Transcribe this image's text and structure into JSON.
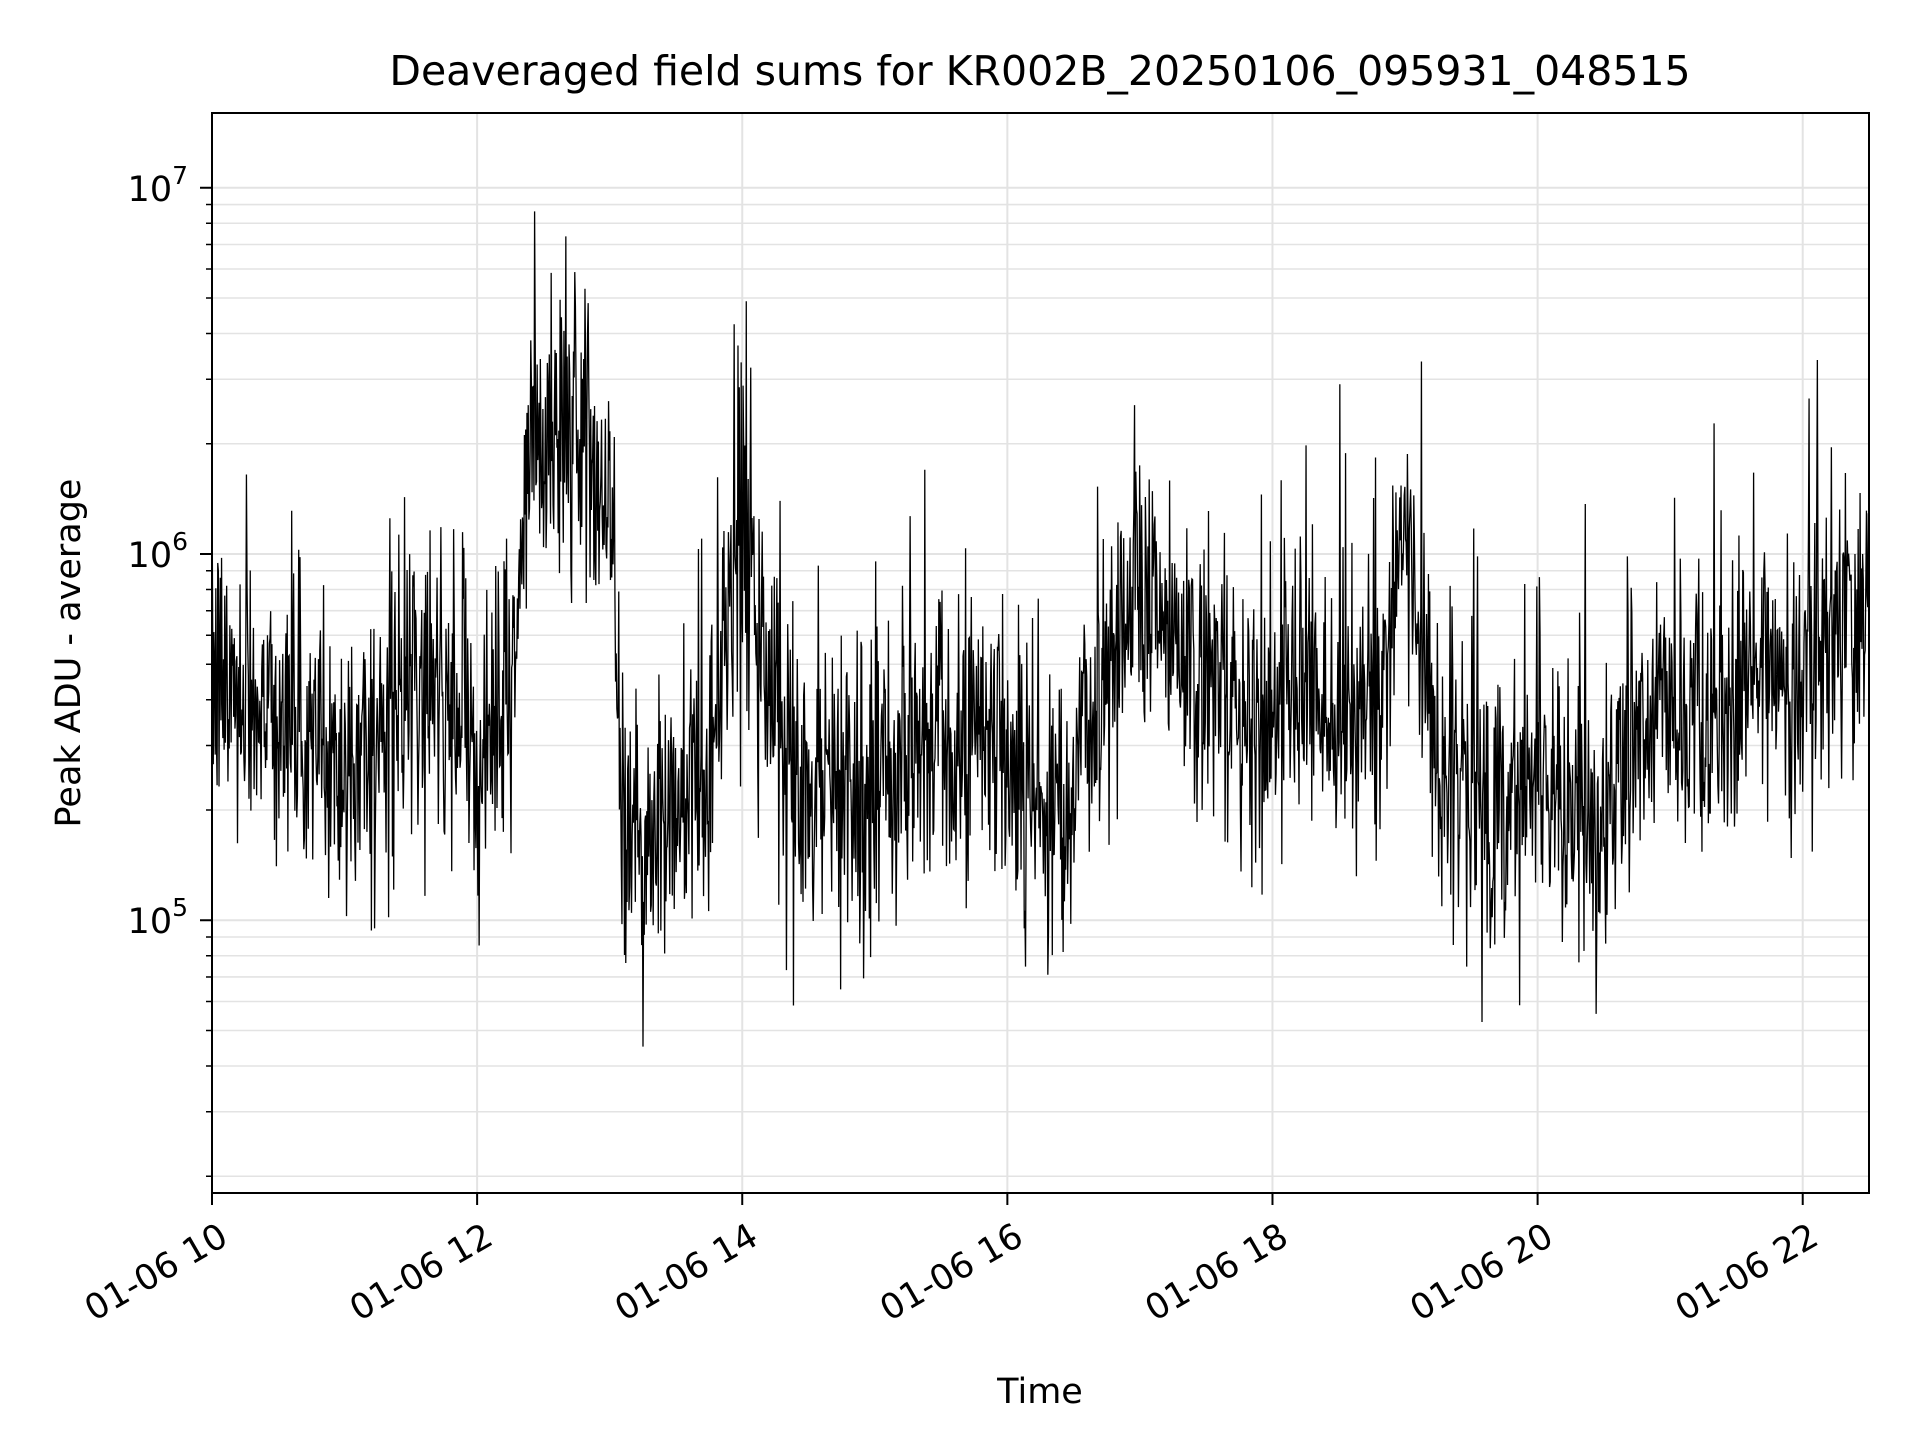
{
  "chart_data": {
    "type": "line",
    "title": "Deaveraged field sums for KR002B_20250106_095931_048515",
    "xlabel": "Time",
    "ylabel": "Peak ADU - average",
    "yscale": "log",
    "x_range": [
      "01-06 10",
      "01-06 22:30"
    ],
    "ylim": [
      18000,
      16000000
    ],
    "grid": true,
    "legend": "none",
    "line_color": "#000000",
    "x_ticks": [
      "01-06 10",
      "01-06 12",
      "01-06 14",
      "01-06 16",
      "01-06 18",
      "01-06 20",
      "01-06 22"
    ],
    "y_ticks": [
      {
        "base": "10",
        "exp": "5",
        "value": 100000
      },
      {
        "base": "10",
        "exp": "6",
        "value": 1000000
      },
      {
        "base": "10",
        "exp": "7",
        "value": 10000000
      }
    ],
    "series": [
      {
        "x_hours": [
          10.0,
          10.25,
          10.5,
          10.75,
          11.0,
          11.25,
          11.5,
          11.75,
          12.0,
          12.25,
          12.4,
          12.6,
          12.8,
          13.0,
          13.1,
          13.25,
          13.5,
          13.75,
          14.0,
          14.25,
          14.5,
          14.75,
          15.0,
          15.25,
          15.5,
          15.75,
          16.0,
          16.25,
          16.5,
          16.75,
          17.0,
          17.25,
          17.5,
          17.75,
          18.0,
          18.25,
          18.5,
          18.75,
          19.0,
          19.25,
          19.5,
          19.75,
          20.0,
          20.25,
          20.5,
          20.75,
          21.0,
          21.25,
          21.5,
          21.75,
          22.0,
          22.25,
          22.5
        ],
        "y_level": [
          450000,
          420000,
          380000,
          300000,
          260000,
          300000,
          420000,
          380000,
          320000,
          380000,
          1800000,
          2200000,
          2000000,
          1500000,
          180000,
          160000,
          200000,
          260000,
          1500000,
          280000,
          200000,
          250000,
          200000,
          300000,
          380000,
          320000,
          300000,
          200000,
          250000,
          450000,
          1000000,
          600000,
          500000,
          300000,
          350000,
          450000,
          300000,
          350000,
          1100000,
          300000,
          200000,
          220000,
          260000,
          220000,
          160000,
          350000,
          350000,
          300000,
          400000,
          500000,
          500000,
          550000,
          750000
        ]
      }
    ]
  }
}
